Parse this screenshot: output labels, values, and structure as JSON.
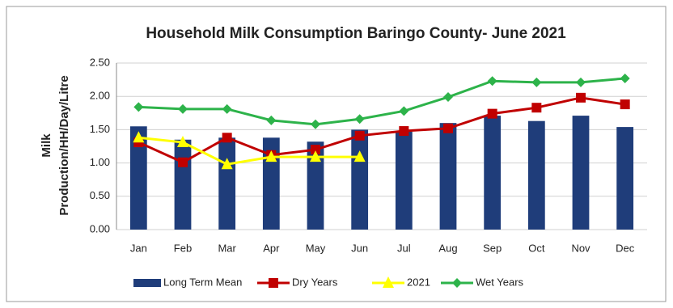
{
  "chart_data": {
    "type": "bar-line",
    "title": "Household Milk Consumption Baringo County- June 2021",
    "y_label": [
      "Milk",
      "Production/HH/Day/Litre"
    ],
    "categories": [
      "Jan",
      "Feb",
      "Mar",
      "Apr",
      "May",
      "Jun",
      "Jul",
      "Aug",
      "Sep",
      "Oct",
      "Nov",
      "Dec"
    ],
    "series": [
      {
        "name": "Long Term Mean",
        "kind": "bar",
        "color": "#1f3d7a",
        "values": [
          1.55,
          1.35,
          1.38,
          1.38,
          1.32,
          1.5,
          1.47,
          1.6,
          1.71,
          1.63,
          1.71,
          1.54
        ]
      },
      {
        "name": "Dry Years",
        "kind": "line",
        "marker": "square",
        "color": "#c00000",
        "values": [
          1.31,
          1.01,
          1.38,
          1.12,
          1.2,
          1.41,
          1.48,
          1.52,
          1.74,
          1.83,
          1.98,
          1.88
        ]
      },
      {
        "name": "2021",
        "kind": "line",
        "marker": "triangle",
        "color": "#ffff00",
        "values": [
          1.38,
          1.31,
          0.98,
          1.09,
          1.09,
          1.09,
          null,
          null,
          null,
          null,
          null,
          null
        ]
      },
      {
        "name": "Wet Years",
        "kind": "line",
        "marker": "diamond",
        "color": "#2db34a",
        "values": [
          1.84,
          1.81,
          1.81,
          1.64,
          1.58,
          1.66,
          1.78,
          1.99,
          2.23,
          2.21,
          2.21,
          2.27
        ]
      }
    ],
    "ylim": [
      0,
      2.5
    ],
    "yticks": [
      {
        "value": 0,
        "label": "0.00"
      },
      {
        "value": 0.5,
        "label": "0.50"
      },
      {
        "value": 1,
        "label": "1.00"
      },
      {
        "value": 1.5,
        "label": "1.50"
      },
      {
        "value": 2,
        "label": "2.00"
      },
      {
        "value": 2.5,
        "label": "2.50"
      }
    ],
    "grid": true,
    "legend": "bottom"
  }
}
